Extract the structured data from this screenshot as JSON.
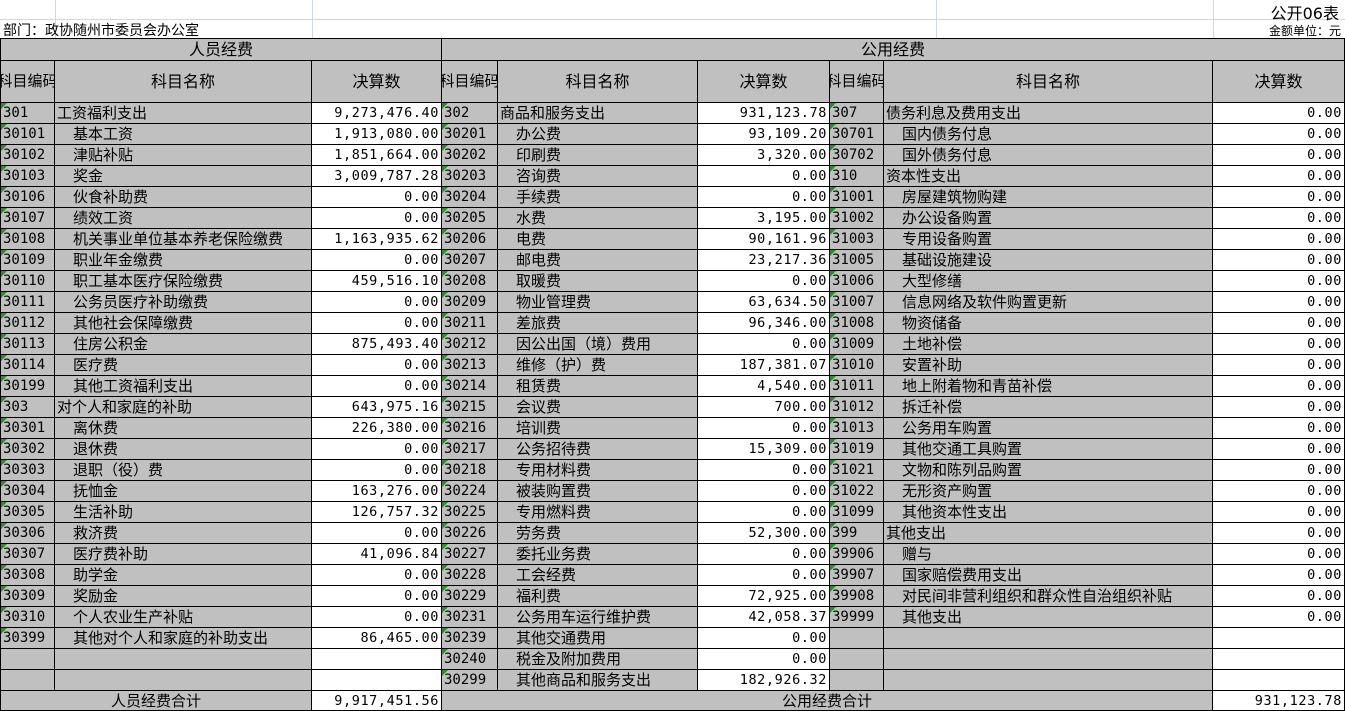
{
  "form_id": "公开06表",
  "department": "部门：政协随州市委员会办公室",
  "unit": "金额单位：元",
  "headers": {
    "personnel": "人员经费",
    "public": "公用经费",
    "code": "科目编码",
    "name": "科目名称",
    "amount": "决算数"
  },
  "personnel_rows": [
    {
      "code": "301",
      "name": "工资福利支出",
      "amount": "9,273,476.40",
      "level": 0
    },
    {
      "code": "30101",
      "name": "基本工资",
      "amount": "1,913,080.00",
      "level": 1
    },
    {
      "code": "30102",
      "name": "津贴补贴",
      "amount": "1,851,664.00",
      "level": 1
    },
    {
      "code": "30103",
      "name": "奖金",
      "amount": "3,009,787.28",
      "level": 1
    },
    {
      "code": "30106",
      "name": "伙食补助费",
      "amount": "0.00",
      "level": 1
    },
    {
      "code": "30107",
      "name": "绩效工资",
      "amount": "0.00",
      "level": 1
    },
    {
      "code": "30108",
      "name": "机关事业单位基本养老保险缴费",
      "amount": "1,163,935.62",
      "level": 1
    },
    {
      "code": "30109",
      "name": "职业年金缴费",
      "amount": "0.00",
      "level": 1
    },
    {
      "code": "30110",
      "name": "职工基本医疗保险缴费",
      "amount": "459,516.10",
      "level": 1
    },
    {
      "code": "30111",
      "name": "公务员医疗补助缴费",
      "amount": "0.00",
      "level": 1
    },
    {
      "code": "30112",
      "name": "其他社会保障缴费",
      "amount": "0.00",
      "level": 1
    },
    {
      "code": "30113",
      "name": "住房公积金",
      "amount": "875,493.40",
      "level": 1
    },
    {
      "code": "30114",
      "name": "医疗费",
      "amount": "0.00",
      "level": 1
    },
    {
      "code": "30199",
      "name": "其他工资福利支出",
      "amount": "0.00",
      "level": 1
    },
    {
      "code": "303",
      "name": "对个人和家庭的补助",
      "amount": "643,975.16",
      "level": 0
    },
    {
      "code": "30301",
      "name": "离休费",
      "amount": "226,380.00",
      "level": 1
    },
    {
      "code": "30302",
      "name": "退休费",
      "amount": "0.00",
      "level": 1
    },
    {
      "code": "30303",
      "name": "退职（役）费",
      "amount": "0.00",
      "level": 1
    },
    {
      "code": "30304",
      "name": "抚恤金",
      "amount": "163,276.00",
      "level": 1
    },
    {
      "code": "30305",
      "name": "生活补助",
      "amount": "126,757.32",
      "level": 1
    },
    {
      "code": "30306",
      "name": "救济费",
      "amount": "0.00",
      "level": 1
    },
    {
      "code": "30307",
      "name": "医疗费补助",
      "amount": "41,096.84",
      "level": 1
    },
    {
      "code": "30308",
      "name": "助学金",
      "amount": "0.00",
      "level": 1
    },
    {
      "code": "30309",
      "name": "奖励金",
      "amount": "0.00",
      "level": 1
    },
    {
      "code": "30310",
      "name": "个人农业生产补贴",
      "amount": "0.00",
      "level": 1
    },
    {
      "code": "30399",
      "name": "其他对个人和家庭的补助支出",
      "amount": "86,465.00",
      "level": 1
    }
  ],
  "public_rows_a": [
    {
      "code": "302",
      "name": "商品和服务支出",
      "amount": "931,123.78",
      "level": 0
    },
    {
      "code": "30201",
      "name": "办公费",
      "amount": "93,109.20",
      "level": 1
    },
    {
      "code": "30202",
      "name": "印刷费",
      "amount": "3,320.00",
      "level": 1
    },
    {
      "code": "30203",
      "name": "咨询费",
      "amount": "0.00",
      "level": 1
    },
    {
      "code": "30204",
      "name": "手续费",
      "amount": "0.00",
      "level": 1
    },
    {
      "code": "30205",
      "name": "水费",
      "amount": "3,195.00",
      "level": 1
    },
    {
      "code": "30206",
      "name": "电费",
      "amount": "90,161.96",
      "level": 1
    },
    {
      "code": "30207",
      "name": "邮电费",
      "amount": "23,217.36",
      "level": 1
    },
    {
      "code": "30208",
      "name": "取暖费",
      "amount": "0.00",
      "level": 1
    },
    {
      "code": "30209",
      "name": "物业管理费",
      "amount": "63,634.50",
      "level": 1
    },
    {
      "code": "30211",
      "name": "差旅费",
      "amount": "96,346.00",
      "level": 1
    },
    {
      "code": "30212",
      "name": "因公出国（境）费用",
      "amount": "0.00",
      "level": 1
    },
    {
      "code": "30213",
      "name": "维修（护）费",
      "amount": "187,381.07",
      "level": 1
    },
    {
      "code": "30214",
      "name": "租赁费",
      "amount": "4,540.00",
      "level": 1
    },
    {
      "code": "30215",
      "name": "会议费",
      "amount": "700.00",
      "level": 1
    },
    {
      "code": "30216",
      "name": "培训费",
      "amount": "0.00",
      "level": 1
    },
    {
      "code": "30217",
      "name": "公务招待费",
      "amount": "15,309.00",
      "level": 1
    },
    {
      "code": "30218",
      "name": "专用材料费",
      "amount": "0.00",
      "level": 1
    },
    {
      "code": "30224",
      "name": "被装购置费",
      "amount": "0.00",
      "level": 1
    },
    {
      "code": "30225",
      "name": "专用燃料费",
      "amount": "0.00",
      "level": 1
    },
    {
      "code": "30226",
      "name": "劳务费",
      "amount": "52,300.00",
      "level": 1
    },
    {
      "code": "30227",
      "name": "委托业务费",
      "amount": "0.00",
      "level": 1
    },
    {
      "code": "30228",
      "name": "工会经费",
      "amount": "0.00",
      "level": 1
    },
    {
      "code": "30229",
      "name": "福利费",
      "amount": "72,925.00",
      "level": 1
    },
    {
      "code": "30231",
      "name": "公务用车运行维护费",
      "amount": "42,058.37",
      "level": 1
    },
    {
      "code": "30239",
      "name": "其他交通费用",
      "amount": "0.00",
      "level": 1
    },
    {
      "code": "30240",
      "name": "税金及附加费用",
      "amount": "0.00",
      "level": 1
    },
    {
      "code": "30299",
      "name": "其他商品和服务支出",
      "amount": "182,926.32",
      "level": 1
    }
  ],
  "public_rows_b": [
    {
      "code": "307",
      "name": "债务利息及费用支出",
      "amount": "0.00",
      "level": 0
    },
    {
      "code": "30701",
      "name": "国内债务付息",
      "amount": "0.00",
      "level": 1
    },
    {
      "code": "30702",
      "name": "国外债务付息",
      "amount": "0.00",
      "level": 1
    },
    {
      "code": "310",
      "name": "资本性支出",
      "amount": "0.00",
      "level": 0
    },
    {
      "code": "31001",
      "name": "房屋建筑物购建",
      "amount": "0.00",
      "level": 1
    },
    {
      "code": "31002",
      "name": "办公设备购置",
      "amount": "0.00",
      "level": 1
    },
    {
      "code": "31003",
      "name": "专用设备购置",
      "amount": "0.00",
      "level": 1
    },
    {
      "code": "31005",
      "name": "基础设施建设",
      "amount": "0.00",
      "level": 1
    },
    {
      "code": "31006",
      "name": "大型修缮",
      "amount": "0.00",
      "level": 1
    },
    {
      "code": "31007",
      "name": "信息网络及软件购置更新",
      "amount": "0.00",
      "level": 1
    },
    {
      "code": "31008",
      "name": "物资储备",
      "amount": "0.00",
      "level": 1
    },
    {
      "code": "31009",
      "name": "土地补偿",
      "amount": "0.00",
      "level": 1
    },
    {
      "code": "31010",
      "name": "安置补助",
      "amount": "0.00",
      "level": 1
    },
    {
      "code": "31011",
      "name": "地上附着物和青苗补偿",
      "amount": "0.00",
      "level": 1
    },
    {
      "code": "31012",
      "name": "拆迁补偿",
      "amount": "0.00",
      "level": 1
    },
    {
      "code": "31013",
      "name": "公务用车购置",
      "amount": "0.00",
      "level": 1
    },
    {
      "code": "31019",
      "name": "其他交通工具购置",
      "amount": "0.00",
      "level": 1
    },
    {
      "code": "31021",
      "name": "文物和陈列品购置",
      "amount": "0.00",
      "level": 1
    },
    {
      "code": "31022",
      "name": "无形资产购置",
      "amount": "0.00",
      "level": 1
    },
    {
      "code": "31099",
      "name": "其他资本性支出",
      "amount": "0.00",
      "level": 1
    },
    {
      "code": "399",
      "name": "其他支出",
      "amount": "0.00",
      "level": 0
    },
    {
      "code": "39906",
      "name": "赠与",
      "amount": "0.00",
      "level": 1
    },
    {
      "code": "39907",
      "name": "国家赔偿费用支出",
      "amount": "0.00",
      "level": 1
    },
    {
      "code": "39908",
      "name": "对民间非营利组织和群众性自治组织补贴",
      "amount": "0.00",
      "level": 1
    },
    {
      "code": "39999",
      "name": "其他支出",
      "amount": "0.00",
      "level": 1
    }
  ],
  "totals": {
    "personnel_label": "人员经费合计",
    "personnel_amount": "9,917,451.56",
    "public_label": "公用经费合计",
    "public_amount": "931,123.78"
  },
  "colors": {
    "header_bg": "#c0c0c0",
    "marker": "#2e8b2e"
  }
}
